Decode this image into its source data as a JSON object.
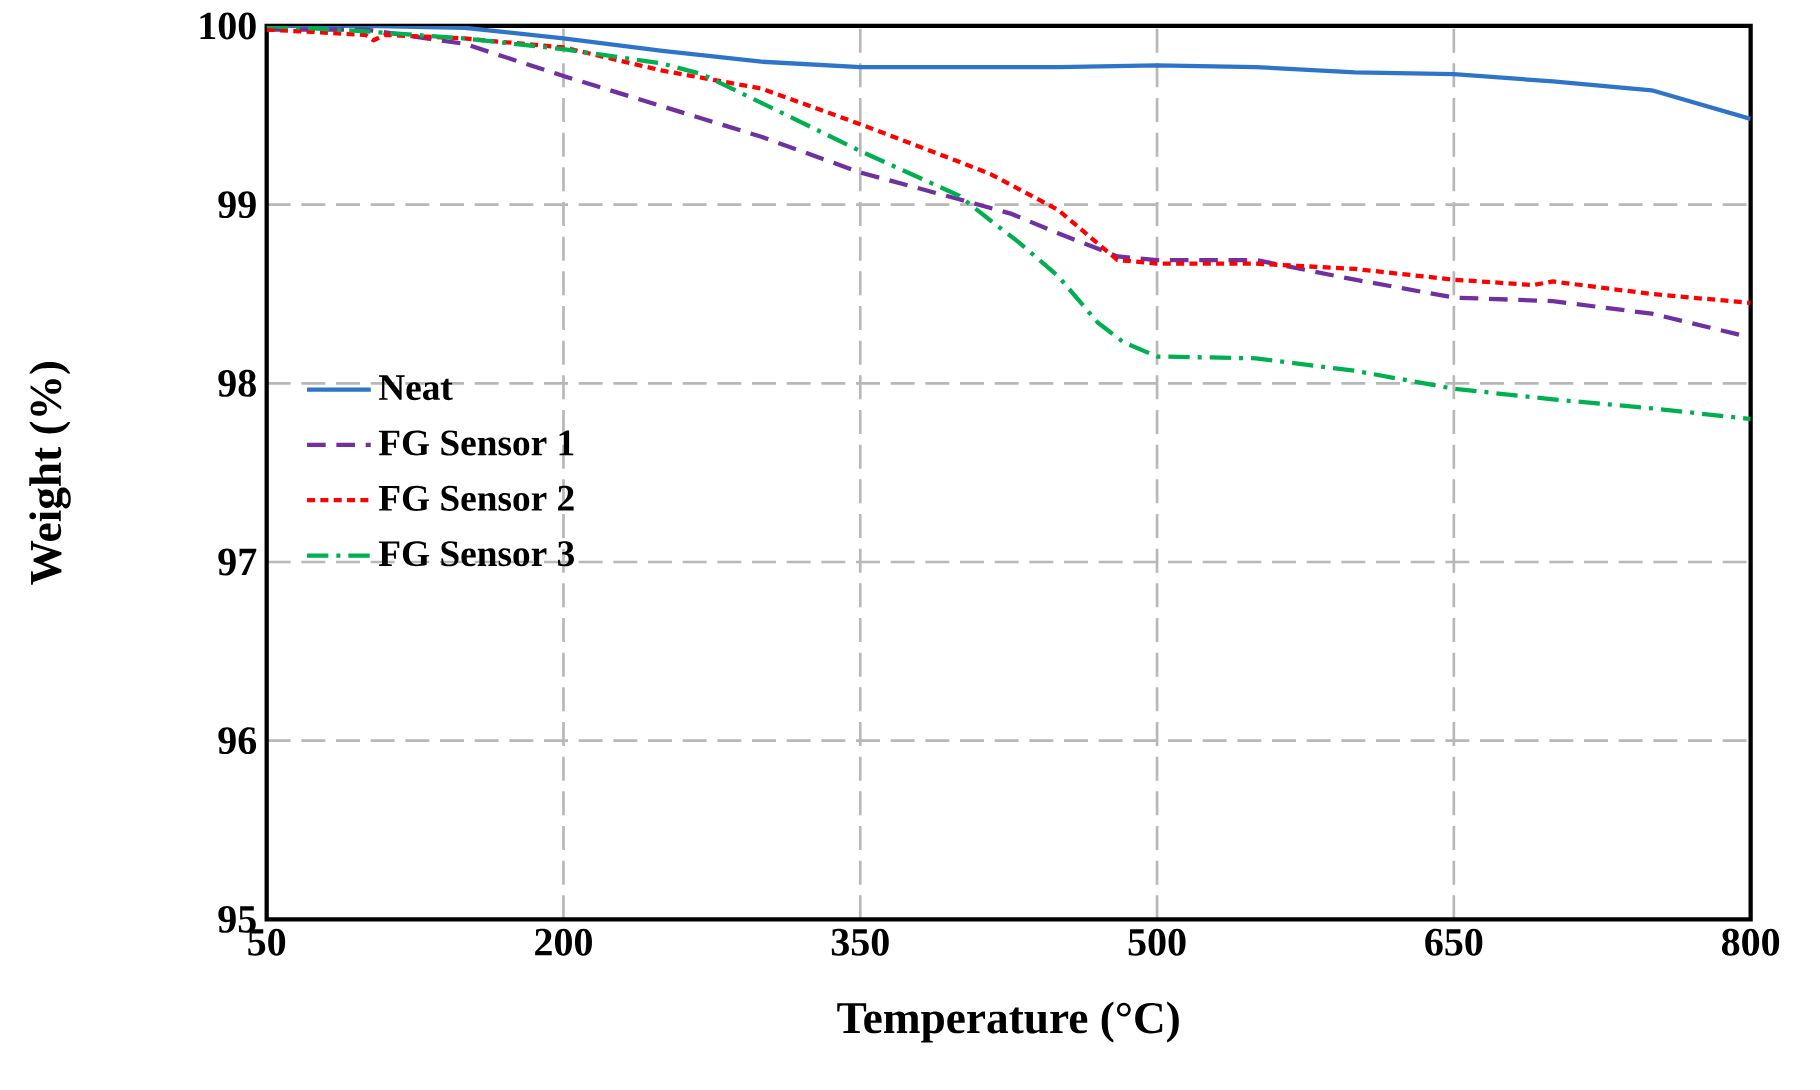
{
  "chart_data": {
    "type": "line",
    "xlabel": "Temperature (°C)",
    "ylabel": "Weight (%)",
    "xlim": [
      50,
      800
    ],
    "xticks": [
      50,
      200,
      350,
      500,
      650,
      800
    ],
    "ylim": [
      95,
      100
    ],
    "yticks": [
      95,
      96,
      97,
      98,
      99,
      100
    ],
    "grid": true,
    "legend": "left",
    "marker": "none",
    "series": [
      {
        "name": "Neat",
        "color": "#2e75c9",
        "line_style": "solid",
        "x": [
          50,
          100,
          150,
          200,
          250,
          300,
          350,
          400,
          450,
          500,
          550,
          600,
          650,
          700,
          750,
          800
        ],
        "values": [
          100.0,
          100.0,
          99.99,
          99.93,
          99.86,
          99.8,
          99.77,
          99.77,
          99.77,
          99.78,
          99.77,
          99.74,
          99.73,
          99.69,
          99.64,
          99.48
        ]
      },
      {
        "name": "FG Sensor 1",
        "color": "#7030a0",
        "line_style": "dashed",
        "x": [
          50,
          100,
          150,
          200,
          250,
          300,
          350,
          400,
          426,
          450,
          480,
          500,
          550,
          600,
          650,
          700,
          750,
          795
        ],
        "values": [
          99.98,
          99.98,
          99.9,
          99.72,
          99.55,
          99.38,
          99.18,
          99.03,
          98.95,
          98.84,
          98.71,
          98.69,
          98.69,
          98.58,
          98.48,
          98.46,
          98.39,
          98.27
        ]
      },
      {
        "name": "FG Sensor 2",
        "color": "#ff0000",
        "line_style": "dotted",
        "x": [
          50,
          100,
          104,
          110,
          150,
          200,
          250,
          300,
          350,
          400,
          416,
          450,
          480,
          500,
          550,
          600,
          650,
          690,
          700,
          750,
          800
        ],
        "values": [
          99.98,
          99.95,
          99.92,
          99.95,
          99.93,
          99.88,
          99.75,
          99.65,
          99.45,
          99.24,
          99.17,
          98.97,
          98.69,
          98.67,
          98.67,
          98.64,
          98.58,
          98.55,
          98.57,
          98.5,
          98.45
        ]
      },
      {
        "name": "FG Sensor 3",
        "color": "#00b050",
        "line_style": "dashdotted",
        "x": [
          50,
          100,
          150,
          200,
          250,
          270,
          300,
          350,
          400,
          416,
          430,
          450,
          470,
          483,
          500,
          550,
          600,
          650,
          700,
          750,
          800
        ],
        "values": [
          100.0,
          99.97,
          99.93,
          99.87,
          99.79,
          99.73,
          99.57,
          99.3,
          99.05,
          98.91,
          98.79,
          98.6,
          98.34,
          98.23,
          98.15,
          98.14,
          98.07,
          97.97,
          97.91,
          97.86,
          97.8
        ]
      }
    ]
  }
}
